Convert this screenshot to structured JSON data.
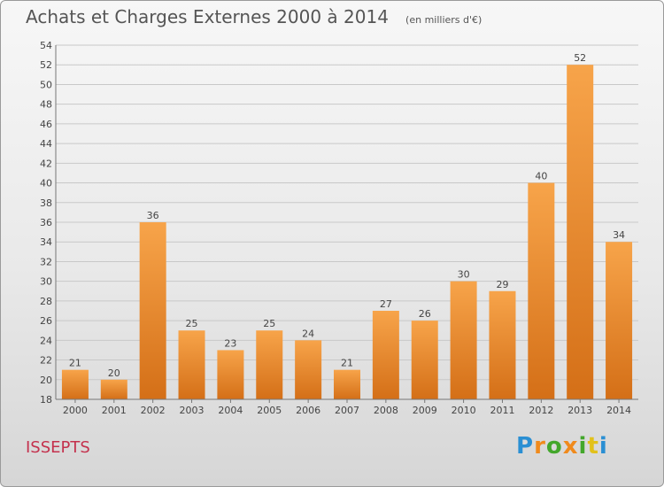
{
  "header": {
    "title": "Achats et Charges Externes 2000 à 2014",
    "subtitle": "(en milliers d'€)"
  },
  "footer": {
    "commune": "ISSEPTS",
    "logo_text": "Proxiti"
  },
  "colors": {
    "bar_light": "#f7a44a",
    "bar_dark": "#d46f17",
    "grid": "#c8c8c8",
    "text": "#444444",
    "commune": "#c4314d"
  },
  "chart_data": {
    "type": "bar",
    "title": "Achats et Charges Externes 2000 à 2014",
    "subtitle": "(en milliers d'€)",
    "categories": [
      "2000",
      "2001",
      "2002",
      "2003",
      "2004",
      "2005",
      "2006",
      "2007",
      "2008",
      "2009",
      "2010",
      "2011",
      "2012",
      "2013",
      "2014"
    ],
    "values": [
      21,
      20,
      36,
      25,
      23,
      25,
      24,
      21,
      27,
      26,
      30,
      29,
      40,
      52,
      34
    ],
    "ylim": [
      18,
      54
    ],
    "yticks": [
      18,
      20,
      22,
      24,
      26,
      28,
      30,
      32,
      34,
      36,
      38,
      40,
      42,
      44,
      46,
      48,
      50,
      52,
      54
    ],
    "xlabel": "",
    "ylabel": "",
    "grid": true,
    "legend": "none"
  }
}
